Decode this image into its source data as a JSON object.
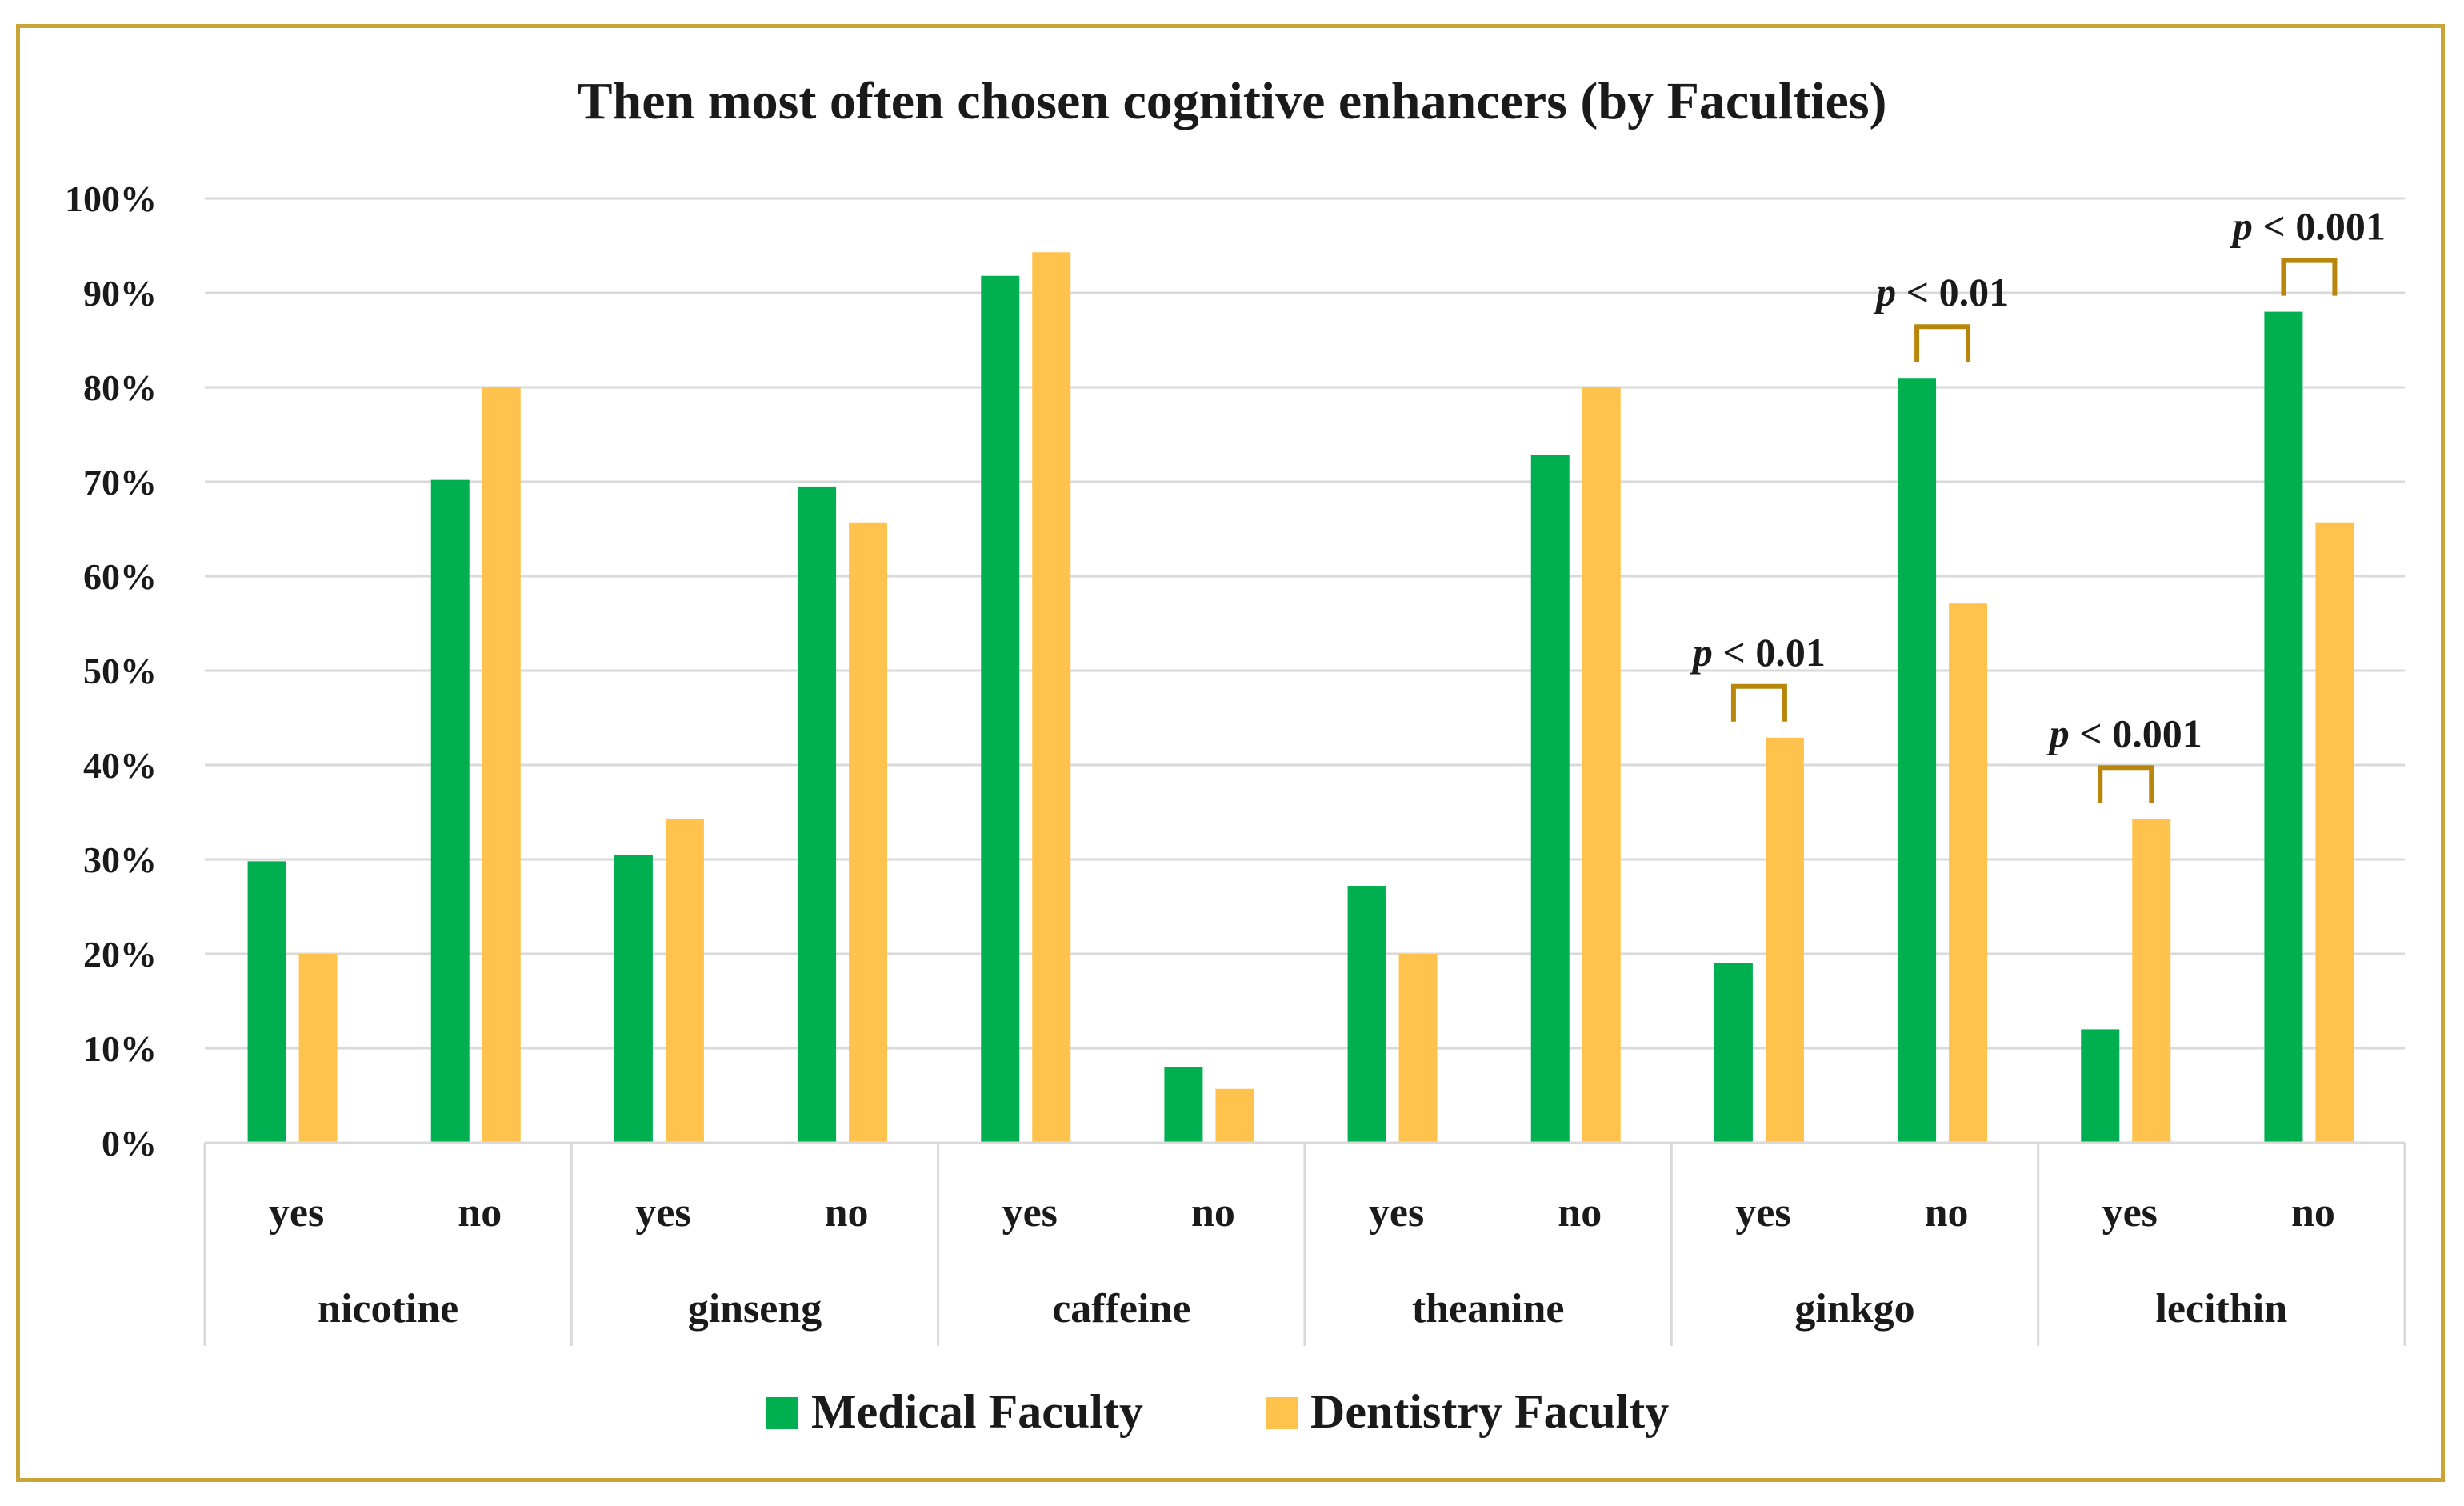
{
  "chart_data": {
    "type": "bar",
    "title": "Then most often chosen cognitive enhancers (by Faculties)",
    "groups": [
      "nicotine",
      "ginseng",
      "caffeine",
      "theanine",
      "ginkgo",
      "lecithin"
    ],
    "subcategories": [
      "yes",
      "no"
    ],
    "y_ticks": [
      "0%",
      "10%",
      "20%",
      "30%",
      "40%",
      "50%",
      "60%",
      "70%",
      "80%",
      "90%",
      "100%"
    ],
    "ylim": [
      0,
      100
    ],
    "grid": true,
    "legend_position": "bottom",
    "series": [
      {
        "name": "Medical Faculty",
        "color": "#00b050",
        "values": [
          29.8,
          70.2,
          30.5,
          69.5,
          91.8,
          8.0,
          27.2,
          72.8,
          19.0,
          81.0,
          12.0,
          88.0
        ]
      },
      {
        "name": "Dentistry Faculty",
        "color": "#ffc34d",
        "values": [
          20.0,
          80.0,
          34.3,
          65.7,
          94.3,
          5.7,
          20.0,
          80.0,
          42.9,
          57.1,
          34.3,
          65.7
        ]
      }
    ],
    "annotations": [
      {
        "bar_index": 8,
        "prefix": "p",
        "text": " < 0.01"
      },
      {
        "bar_index": 9,
        "prefix": "p",
        "text": " < 0.01"
      },
      {
        "bar_index": 10,
        "prefix": "p",
        "text": " < 0.001"
      },
      {
        "bar_index": 11,
        "prefix": "p",
        "text": " < 0.001"
      }
    ],
    "bracket_color": "#b8860b"
  }
}
